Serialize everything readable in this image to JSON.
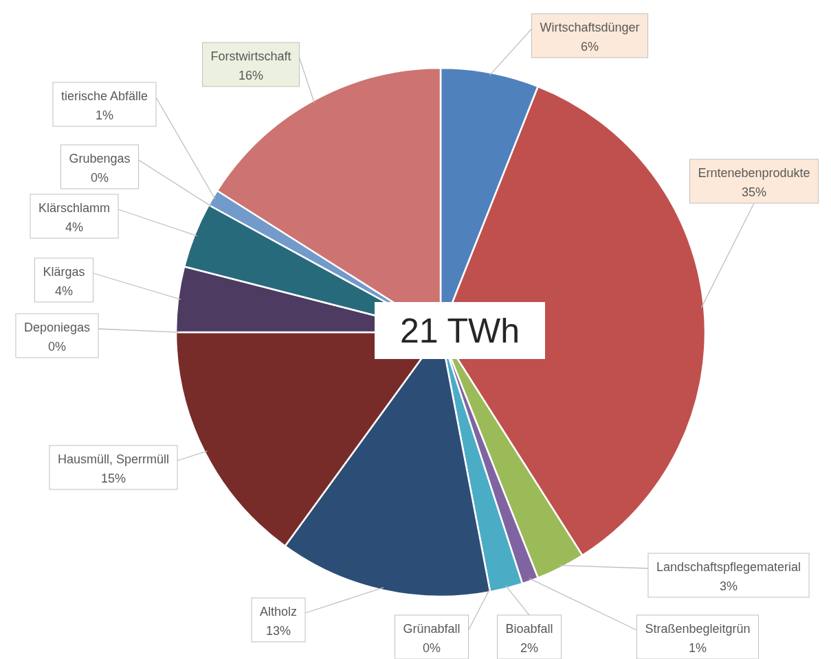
{
  "chart_data": {
    "type": "pie",
    "categories": [
      "Wirtschaftsdünger",
      "Erntenebenprodukte",
      "Landschaftspflegematerial",
      "Straßenbegleitgrün",
      "Bioabfall",
      "Grünabfall",
      "Altholz",
      "Hausmüll, Sperrmüll",
      "Deponiegas",
      "Klärgas",
      "Klärschlamm",
      "Grubengas",
      "tierische Abfälle",
      "Forstwirtschaft"
    ],
    "values": [
      6,
      35,
      3,
      1,
      2,
      0,
      13,
      15,
      0,
      4,
      4,
      0,
      1,
      16
    ],
    "value_labels": [
      "6%",
      "35%",
      "3%",
      "1%",
      "2%",
      "0%",
      "13%",
      "15%",
      "0%",
      "4%",
      "4%",
      "0%",
      "1%",
      "16%"
    ],
    "colors": [
      "#4f81bd",
      "#c0504d",
      "#9bbb59",
      "#8064a2",
      "#4bacc6",
      "#f79646",
      "#2c4d75",
      "#772c2a",
      "#5f7530",
      "#4d3b62",
      "#276a7c",
      "#b65708",
      "#729aca",
      "#cd7371"
    ],
    "annotations": [
      "21 TWh"
    ]
  }
}
